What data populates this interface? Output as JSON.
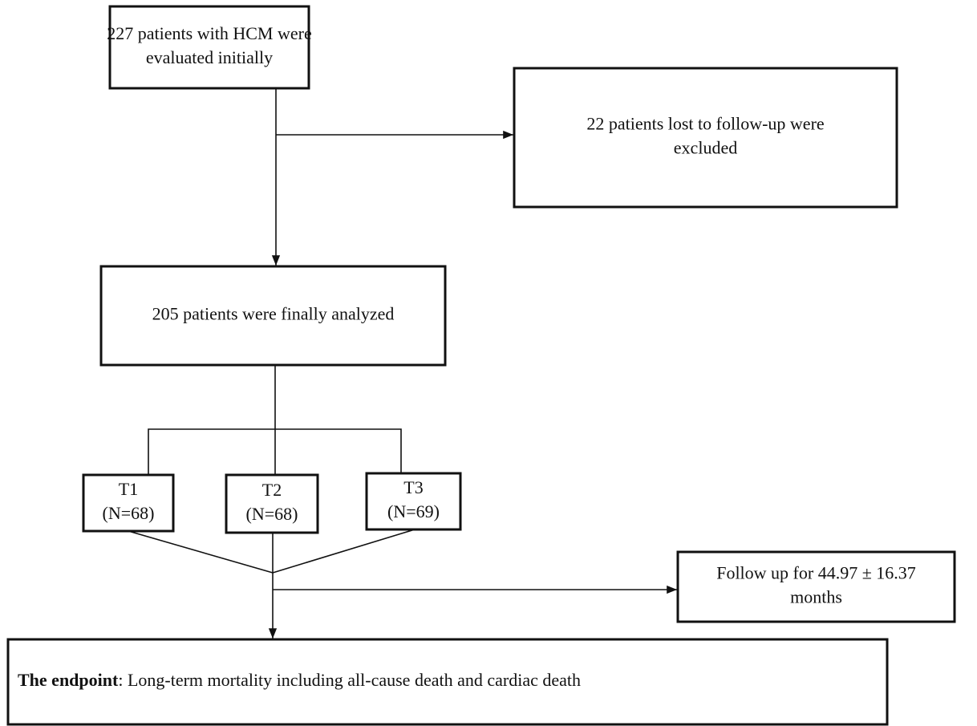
{
  "nodes": [
    {
      "lines": [
        "227 patients with HCM were",
        "evaluated initially"
      ]
    },
    {
      "lines": [
        "22 patients lost to follow-up were",
        "excluded"
      ]
    },
    {
      "lines": [
        "205 patients were finally analyzed"
      ]
    },
    {
      "lines": [
        "T1",
        "(N=68)"
      ]
    },
    {
      "lines": [
        "T2",
        "(N=68)"
      ]
    },
    {
      "lines": [
        "T3",
        "(N=69)"
      ]
    },
    {
      "lines": [
        "Follow up for 44.97 ± 16.37",
        "months"
      ]
    },
    {
      "bold": "The endpoint",
      "text": ": Long-term mortality including all-cause death and cardiac death"
    }
  ]
}
